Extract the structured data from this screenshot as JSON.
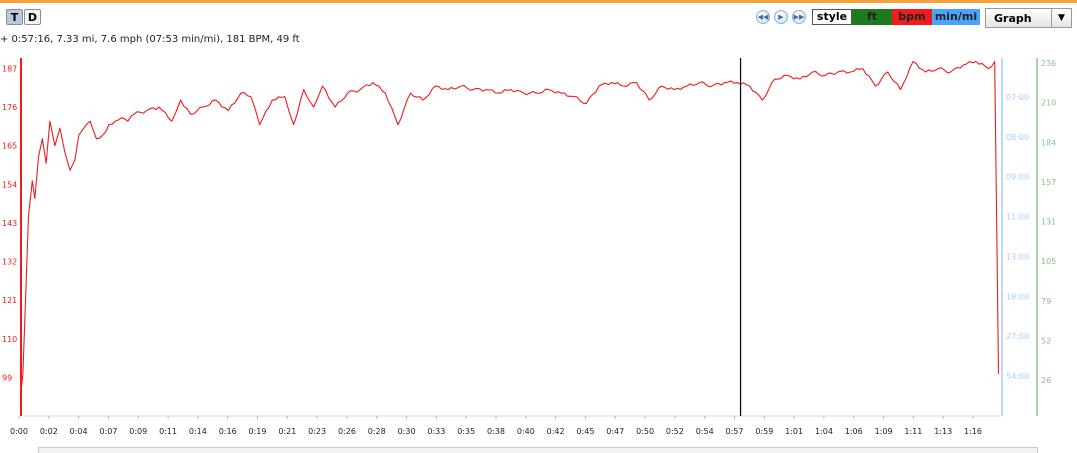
{
  "toolbar": {
    "t_label": "T",
    "d_label": "D",
    "style_label": "style",
    "graph_select_value": "Graph",
    "nav_icons": [
      "rewind-icon",
      "play-icon",
      "fast-forward-icon"
    ]
  },
  "legend": [
    {
      "label": "ft",
      "color": "#1f7a1f"
    },
    {
      "label": "bpm",
      "color": "#ee1c1c"
    },
    {
      "label": "min/mi",
      "color": "#4aa3ff"
    }
  ],
  "status_text": "+ 0:57:16, 7.33 mi, 7.6 mph (07:53 min/mi), 181 BPM, 49 ft",
  "chart_data": {
    "type": "line",
    "title": "",
    "xlabel": "",
    "ylabel": "",
    "grid": false,
    "x_tick_labels": [
      "0:00",
      "0:02",
      "0:04",
      "0:07",
      "0:09",
      "0:11",
      "0:14",
      "0:16",
      "0:19",
      "0:21",
      "0:23",
      "0:26",
      "0:28",
      "0:30",
      "0:33",
      "0:35",
      "0:38",
      "0:40",
      "0:42",
      "0:45",
      "0:47",
      "0:50",
      "0:52",
      "0:54",
      "0:57",
      "0:59",
      "1:01",
      "1:04",
      "1:06",
      "1:09",
      "1:11",
      "1:13",
      "1:16"
    ],
    "x_unit": "minutes",
    "xlim": [
      0,
      78
    ],
    "cursor_x": 57.27,
    "axes": {
      "bpm": {
        "color": "#ee1c1c",
        "ylim": [
          88,
          190
        ],
        "ticks": [
          99,
          110,
          121,
          132,
          143,
          154,
          165,
          176,
          187
        ]
      },
      "pace": {
        "color": "#a9cdf5",
        "tick_labels": [
          "07:00",
          "08:00",
          "09:00",
          "11:00",
          "13:00",
          "18:00",
          "27:00",
          "54:00"
        ]
      },
      "elevation": {
        "color": "#8dc08d",
        "ticks": [
          236,
          210,
          184,
          157,
          131,
          105,
          79,
          52,
          26
        ]
      }
    },
    "series": [
      {
        "name": "bpm",
        "color": "#ee1c1c",
        "x": [
          0,
          0.15,
          0.35,
          0.6,
          0.9,
          1.1,
          1.4,
          1.7,
          2.0,
          2.3,
          2.7,
          3.1,
          3.5,
          3.9,
          4.3,
          4.6,
          5.0,
          5.5,
          6.0,
          6.5,
          7.0,
          7.5,
          8.0,
          8.5,
          9.0,
          10.0,
          11.0,
          12.0,
          12.7,
          13.5,
          14.5,
          15.5,
          16.5,
          17.5,
          18.3,
          19.0,
          20.0,
          21.0,
          21.7,
          22.5,
          23.3,
          24.0,
          25.0,
          26.0,
          27.0,
          28.0,
          29.0,
          30.0,
          31.0,
          32.0,
          33.0,
          34.0,
          35.0,
          36.0,
          37.0,
          38.0,
          39.0,
          40.0,
          41.0,
          42.0,
          43.0,
          44.0,
          45.0,
          46.0,
          47.0,
          48.0,
          49.0,
          50.0,
          51.0,
          52.0,
          53.0,
          54.0,
          55.0,
          56.0,
          57.0,
          58.0,
          59.0,
          60.0,
          61.0,
          62.0,
          63.0,
          64.0,
          65.0,
          66.0,
          67.0,
          68.0,
          69.0,
          70.0,
          71.0,
          72.0,
          73.0,
          74.0,
          75.0,
          76.0,
          77.0,
          77.5,
          77.8
        ],
        "values": [
          95,
          100,
          120,
          145,
          155,
          150,
          162,
          167,
          160,
          172,
          165,
          170,
          163,
          158,
          161,
          168,
          170,
          172,
          167,
          168,
          171,
          172,
          173,
          172,
          174,
          175,
          176,
          172,
          178,
          174,
          176,
          178,
          175,
          180,
          179,
          171,
          178,
          179,
          171,
          181,
          176,
          182,
          176,
          180,
          181,
          183,
          180,
          171,
          180,
          178,
          182,
          181,
          182,
          181,
          181,
          180,
          181,
          180,
          180,
          181,
          180,
          179,
          177,
          182,
          183,
          182,
          183,
          178,
          182,
          181,
          182,
          183,
          182,
          183,
          183,
          182,
          178,
          184,
          185,
          184,
          186,
          185,
          186,
          186,
          187,
          182,
          186,
          181,
          189,
          186,
          187,
          186,
          188,
          189,
          187,
          189,
          100
        ]
      }
    ]
  }
}
